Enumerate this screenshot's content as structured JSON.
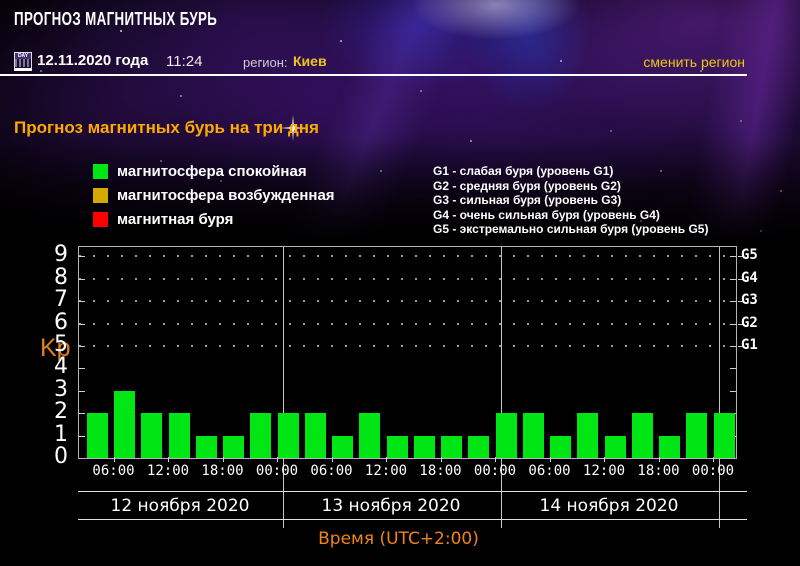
{
  "header": {
    "title": "ПРОГНОЗ МАГНИТНЫХ БУРЬ",
    "calendar_icon_text": "DAY",
    "date": "12.11.2020 года",
    "time": "11:24",
    "region_label": "регион:",
    "region_value": "Киев",
    "change_region": "сменить регион"
  },
  "subtitle": "Прогноз магнитных бурь на три дня",
  "legend": {
    "items": [
      {
        "label": "магнитосфера спокойная",
        "color": "#00e614"
      },
      {
        "label": "магнитосфера возбужденная",
        "color": "#d4aa00"
      },
      {
        "label": "магнитная буря",
        "color": "#ff0000"
      }
    ]
  },
  "storm_levels": [
    "G1 - слабая буря (уровень G1)",
    "G2 - средняя буря (уровень G2)",
    "G3 - сильная буря (уровень G3)",
    "G4 - очень сильная буря (уровень G4)",
    "G5 - экстремально сильная буря (уровень G5)"
  ],
  "chart_data": {
    "type": "bar",
    "title": "Прогноз магнитных бурь на три дня",
    "ylabel": "Kp",
    "xlabel": "Время (UTC+2:00)",
    "ylim": [
      0,
      9
    ],
    "interval_hours": 3,
    "bar_color": "#00e614",
    "grid": "dotted horizontal rows at Kp 5..9, dark background",
    "legend_position": "above chart",
    "values": [
      2,
      3,
      2,
      2,
      1,
      1,
      2,
      2,
      2,
      1,
      2,
      1,
      1,
      1,
      1,
      2,
      2,
      1,
      2,
      1,
      2,
      1,
      2,
      2
    ],
    "days": [
      {
        "date": "12 ноября 2020",
        "values": [
          2,
          3,
          2,
          2,
          1,
          1,
          2,
          2
        ]
      },
      {
        "date": "13 ноября 2020",
        "values": [
          2,
          1,
          2,
          1,
          1,
          1,
          1,
          2
        ]
      },
      {
        "date": "14 ноября 2020",
        "values": [
          2,
          1,
          2,
          1,
          2,
          1,
          2,
          2
        ]
      }
    ],
    "x_tick_labels": [
      "06:00",
      "12:00",
      "18:00",
      "00:00",
      "06:00",
      "12:00",
      "18:00",
      "00:00",
      "06:00",
      "12:00",
      "18:00",
      "00:00"
    ],
    "y_ticks": [
      0,
      1,
      2,
      3,
      4,
      5,
      6,
      7,
      8,
      9
    ],
    "right_axis_labels": [
      {
        "label": "G5",
        "level": 9
      },
      {
        "label": "G4",
        "level": 8
      },
      {
        "label": "G3",
        "level": 7
      },
      {
        "label": "G2",
        "level": 6
      },
      {
        "label": "G1",
        "level": 5
      }
    ]
  }
}
